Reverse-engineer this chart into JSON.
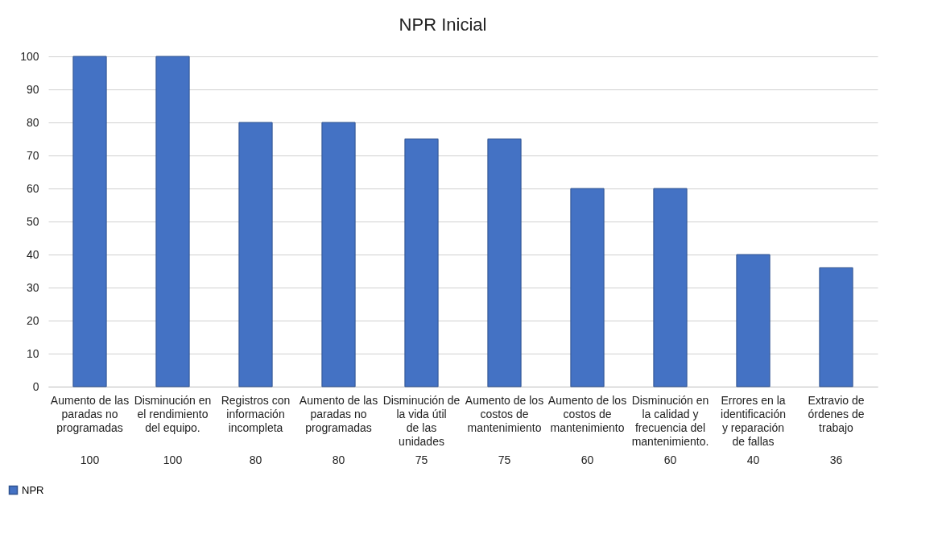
{
  "chart_data": {
    "type": "bar",
    "title": "NPR Inicial",
    "categories": [
      "Aumento de las paradas no programadas",
      "Disminución en el rendimiento del equipo.",
      "Registros con información incompleta",
      "Aumento de las paradas no programadas",
      "Disminución de la vida útil de las unidades",
      "Aumento de los costos de mantenimiento",
      "Aumento de los costos de mantenimiento",
      "Disminución en la calidad y frecuencia del mantenimiento.",
      "Errores en la identificación y reparación de fallas",
      "Extravio de órdenes de trabajo"
    ],
    "series": [
      {
        "name": "NPR",
        "color": "#4472c4",
        "values": [
          100,
          100,
          80,
          80,
          75,
          75,
          60,
          60,
          40,
          36
        ]
      }
    ],
    "ylim": [
      0,
      100
    ],
    "yticks": [
      0,
      10,
      20,
      30,
      40,
      50,
      60,
      70,
      80,
      90,
      100
    ],
    "grid": true,
    "legend": "bottom left",
    "data_labels": true
  }
}
